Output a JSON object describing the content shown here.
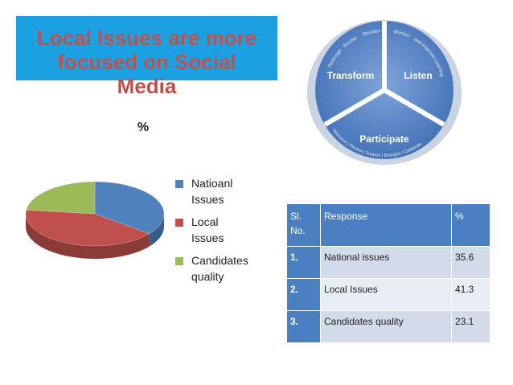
{
  "slide": {
    "title_lines": [
      "Local Issues are more",
      "focused on Social",
      "Media"
    ]
  },
  "chart_data": {
    "type": "pie",
    "title": "%",
    "categories": [
      "Natioanl Issues",
      "Local Issues",
      "Candidates quality"
    ],
    "values": [
      35.6,
      41.3,
      23.1
    ],
    "legend": [
      "Natioanl",
      "Issues",
      "Local",
      "Issues",
      "Candidates",
      "quality"
    ],
    "legend_position": "right",
    "colors": [
      "#4f81bd",
      "#c0504d",
      "#9bbb59"
    ]
  },
  "cycle": {
    "segments": [
      "Transform",
      "Listen",
      "Participate"
    ],
    "arc_texts": [
      "Reorder",
      "Revise",
      "Redesign",
      "Monitor",
      "and Improve Learning",
      "Resource | Review | Support | Energize | Celebrate"
    ]
  },
  "table": {
    "headers": [
      "Sl.\nNo.",
      "Response",
      "%"
    ],
    "header_sl_lines": [
      "Sl.",
      "No."
    ],
    "rows": [
      [
        "1.",
        "National issues",
        "35.6"
      ],
      [
        "2.",
        "Local Issues",
        "41.3"
      ],
      [
        "3.",
        "Candidates quality",
        "23.1"
      ]
    ]
  }
}
